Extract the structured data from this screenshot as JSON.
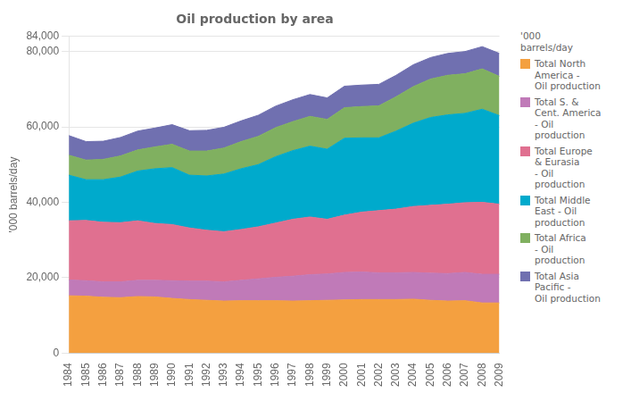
{
  "chart_data": {
    "type": "area",
    "title": "Oil production by area",
    "ylabel": "'000 barrels/day",
    "x": [
      1984,
      1985,
      1986,
      1987,
      1988,
      1989,
      1990,
      1991,
      1992,
      1993,
      1994,
      1995,
      1996,
      1997,
      1998,
      1999,
      2000,
      2001,
      2002,
      2003,
      2004,
      2005,
      2006,
      2007,
      2008,
      2009
    ],
    "series": [
      {
        "name": "Total North\nAmerica -\nOil production",
        "color": "#F4A040",
        "values": [
          15200,
          15100,
          14800,
          14700,
          15000,
          14900,
          14500,
          14200,
          14000,
          13800,
          13900,
          13900,
          13900,
          13800,
          13900,
          14000,
          14100,
          14200,
          14200,
          14200,
          14300,
          14000,
          13800,
          13900,
          13300,
          13300
        ]
      },
      {
        "name": "Total S. &\nCent. America\n- Oil\nproduction",
        "color": "#C07AB8",
        "values": [
          4200,
          4100,
          4100,
          4200,
          4300,
          4400,
          4700,
          4900,
          5100,
          5100,
          5400,
          5800,
          6200,
          6600,
          6900,
          7000,
          7300,
          7300,
          7100,
          7100,
          7100,
          7200,
          7300,
          7500,
          7600,
          7600
        ]
      },
      {
        "name": "Total Europe\n& Eurasia\n- Oil\nproduction",
        "color": "#E07090",
        "values": [
          15700,
          16000,
          15800,
          15700,
          15800,
          15100,
          14900,
          14100,
          13500,
          13300,
          13500,
          13800,
          14400,
          15100,
          15300,
          14500,
          15200,
          15900,
          16500,
          16900,
          17500,
          18000,
          18400,
          18500,
          19100,
          18600
        ]
      },
      {
        "name": "Total Middle\nEast - Oil\nproduction",
        "color": "#00AACC",
        "values": [
          12100,
          10800,
          11300,
          12100,
          13200,
          14500,
          15100,
          14000,
          14400,
          15300,
          16100,
          16500,
          17600,
          18200,
          18800,
          18600,
          20400,
          19700,
          19300,
          20700,
          22100,
          23300,
          23700,
          23700,
          24700,
          23500
        ]
      },
      {
        "name": "Total Africa\n- Oil\nproduction",
        "color": "#80B060",
        "values": [
          5300,
          5200,
          5400,
          5600,
          5600,
          5800,
          6200,
          6400,
          6600,
          6900,
          7200,
          7500,
          7700,
          7700,
          7900,
          7900,
          8100,
          8300,
          8500,
          9100,
          9700,
          10200,
          10500,
          10500,
          10700,
          10400
        ]
      },
      {
        "name": "Total Asia\nPacific -\nOil production",
        "color": "#7070B0",
        "values": [
          5200,
          4900,
          4800,
          4900,
          5000,
          5000,
          5200,
          5400,
          5500,
          5500,
          5500,
          5600,
          5700,
          5800,
          5800,
          5700,
          5700,
          5700,
          5700,
          5700,
          5800,
          5700,
          5800,
          5900,
          5900,
          6100
        ]
      }
    ],
    "stacked": true,
    "xlim": [
      1984,
      2009
    ],
    "xticks": [
      1984,
      1985,
      1986,
      1987,
      1988,
      1989,
      1990,
      1991,
      1992,
      1993,
      1994,
      1995,
      1996,
      1997,
      1998,
      1999,
      2000,
      2001,
      2002,
      2003,
      2004,
      2005,
      2006,
      2007,
      2008,
      2009
    ],
    "ylim": [
      0,
      84000
    ],
    "yticks": [
      0,
      {
        "value": 20000,
        "label": "20,000"
      },
      {
        "value": 40000,
        "label": "40,000"
      },
      {
        "value": 60000,
        "label": "60,000"
      },
      {
        "value": 80000,
        "label": "80,000"
      },
      {
        "value": 84000,
        "label": "84,000"
      }
    ],
    "grid": true,
    "legend": "right",
    "legend_title": "'000\nbarrels/day"
  }
}
